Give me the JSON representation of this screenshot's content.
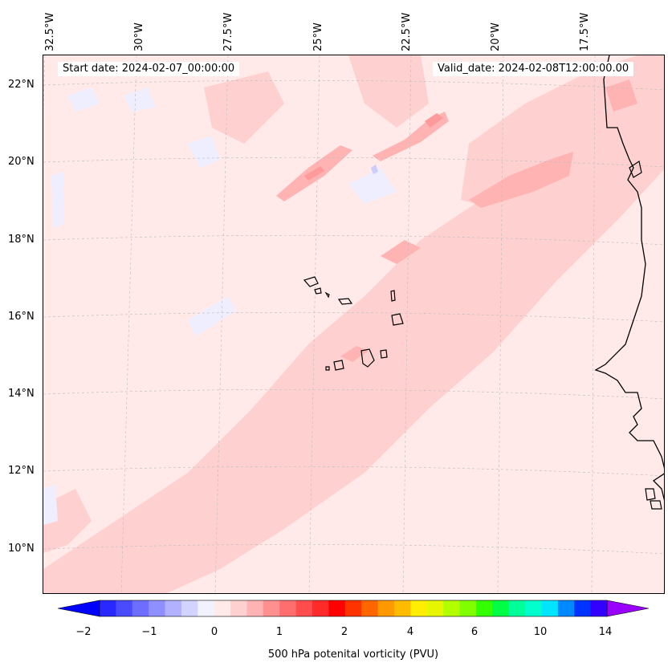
{
  "map": {
    "start_date": "Start date: 2024-02-07_00:00:00",
    "valid_date": "Valid_date: 2024-02-08T12:00:00.00",
    "longitude_labels": [
      "32.5°W",
      "30°W",
      "27.5°W",
      "25°W",
      "22.5°W",
      "20°W",
      "17.5°W"
    ],
    "latitude_labels": [
      "22°N",
      "20°N",
      "18°N",
      "16°N",
      "14°N",
      "12°N",
      "10°N"
    ],
    "colors": {
      "background": "#ffe9e9",
      "light_pink": "#ffd0d0",
      "medium_pink": "#ffb3b3",
      "strong_pink": "#ff9a9a",
      "light_blue": "#eeeeff",
      "coastline": "#000000"
    }
  },
  "colorbar": {
    "label": "500 hPa potenital vorticity (PVU)",
    "tick_labels": [
      "−2",
      "−1",
      "0",
      "1",
      "2",
      "4",
      "6",
      "10",
      "14"
    ],
    "colors": [
      "#0000ff",
      "#2828ff",
      "#4a4aff",
      "#6d6dff",
      "#8f8fff",
      "#b1b1ff",
      "#d3d3ff",
      "#f2f2ff",
      "#ffe9e9",
      "#ffd0d0",
      "#ffb3b3",
      "#ff9090",
      "#ff6e6e",
      "#ff4c4c",
      "#ff2a2a",
      "#ff0000",
      "#ff3300",
      "#ff6600",
      "#ff9900",
      "#ffbb00",
      "#ffee00",
      "#e6f500",
      "#b3ff00",
      "#80ff00",
      "#33ff00",
      "#00ff44",
      "#00ff99",
      "#00ffcc",
      "#00e5ff",
      "#0088ff",
      "#0033ff",
      "#3300ff",
      "#9900ff"
    ]
  }
}
